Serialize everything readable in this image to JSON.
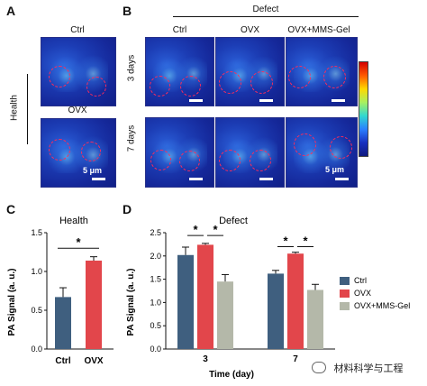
{
  "panels": {
    "A": {
      "letter": "A",
      "col_ctrl": "Ctrl",
      "col_ovx": "OVX",
      "row_label": "Health",
      "scale": "5 μm"
    },
    "B": {
      "letter": "B",
      "header": "Defect",
      "cols": [
        "Ctrl",
        "OVX",
        "OVX+MMS-Gel"
      ],
      "rows": [
        "3 days",
        "7 days"
      ],
      "scale": "5 μm"
    },
    "C": {
      "letter": "C"
    },
    "D": {
      "letter": "D"
    }
  },
  "watermark": "材料科学与工程",
  "chart_data": [
    {
      "type": "bar",
      "title": "Health",
      "categories": [
        "Ctrl",
        "OVX"
      ],
      "values": [
        0.67,
        1.14
      ],
      "errors": [
        0.12,
        0.05
      ],
      "colors": [
        "#3f5f7f",
        "#e2464b"
      ],
      "ylabel": "PA Signal (a. u.)",
      "xlabel": "",
      "ylim": [
        0.0,
        1.5
      ],
      "yticks": [
        "0.0",
        "0.5",
        "1.0",
        "1.5"
      ],
      "yticks_values": [
        0.0,
        0.5,
        1.0,
        1.5
      ],
      "significance": [
        {
          "from": 0,
          "to": 1,
          "label": "*"
        }
      ],
      "grid": false
    },
    {
      "type": "bar",
      "title": "Defect",
      "categories": [
        "3",
        "7"
      ],
      "series": [
        {
          "name": "Ctrl",
          "values": [
            2.02,
            1.62
          ],
          "errors": [
            0.17,
            0.07
          ],
          "color": "#3f5f7f"
        },
        {
          "name": "OVX",
          "values": [
            2.24,
            2.05
          ],
          "errors": [
            0.03,
            0.03
          ],
          "color": "#e2464b"
        },
        {
          "name": "OVX+MMS-Gel",
          "values": [
            1.45,
            1.27
          ],
          "errors": [
            0.15,
            0.12
          ],
          "color": "#b4b8a9"
        }
      ],
      "xlabel": "Time (day)",
      "ylabel": "PA Signal (a. u.)",
      "ylim": [
        0.0,
        2.5
      ],
      "yticks": [
        "0.0",
        "0.5",
        "1.0",
        "1.5",
        "2.0",
        "2.5"
      ],
      "yticks_values": [
        0.0,
        0.5,
        1.0,
        1.5,
        2.0,
        2.5
      ],
      "legend_position": "right",
      "significance": [
        {
          "group": 0,
          "from": 0,
          "to": 1,
          "label": "*"
        },
        {
          "group": 0,
          "from": 1,
          "to": 2,
          "label": "*"
        },
        {
          "group": 1,
          "from": 0,
          "to": 1,
          "label": "*"
        },
        {
          "group": 1,
          "from": 1,
          "to": 2,
          "label": "*"
        }
      ],
      "grid": false
    }
  ]
}
